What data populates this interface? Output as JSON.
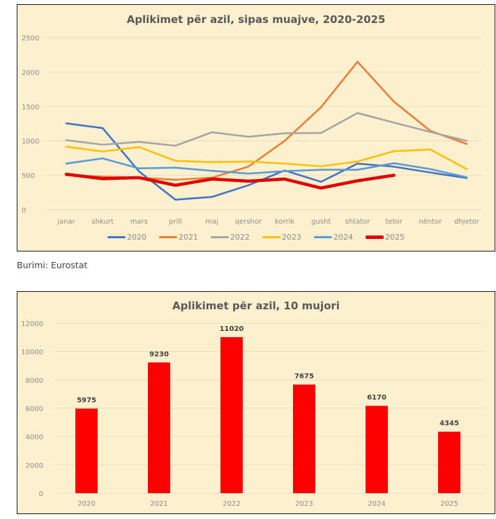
{
  "source": "Burimi: Eurostat",
  "chart_data": [
    {
      "type": "line",
      "title": "Aplikimet për azil, sipas muajve, 2020-2025",
      "xlabel": "",
      "ylabel": "",
      "ylim": [
        0,
        2500
      ],
      "yticks": [
        "0",
        "500",
        "1000",
        "1500",
        "2000",
        "2500"
      ],
      "ytick_values": [
        0,
        500,
        1000,
        1500,
        2000,
        2500
      ],
      "grid": true,
      "legend": "bottom",
      "categories": [
        "janar",
        "shkurt",
        "mars",
        "prill",
        "maj",
        "qershor",
        "korrik",
        "gusht",
        "shtator",
        "tetor",
        "nëntor",
        "dhjetor"
      ],
      "series": [
        {
          "name": "2020",
          "color": "#4472c4",
          "values": [
            1255,
            1185,
            555,
            145,
            185,
            355,
            570,
            405,
            670,
            625,
            540,
            460
          ]
        },
        {
          "name": "2021",
          "color": "#ed7d31",
          "values": [
            500,
            480,
            465,
            435,
            465,
            625,
            1000,
            1490,
            2150,
            1570,
            1145,
            955
          ]
        },
        {
          "name": "2022",
          "color": "#a5a5a5",
          "values": [
            1010,
            945,
            985,
            930,
            1125,
            1060,
            1110,
            1115,
            1405,
            1265,
            1130,
            1000
          ]
        },
        {
          "name": "2023",
          "color": "#ffc000",
          "values": [
            915,
            845,
            910,
            710,
            690,
            700,
            670,
            630,
            700,
            850,
            875,
            590
          ]
        },
        {
          "name": "2024",
          "color": "#5b9bd5",
          "values": [
            670,
            745,
            600,
            610,
            565,
            525,
            560,
            580,
            580,
            675,
            590,
            470
          ]
        },
        {
          "name": "2025",
          "color": "#e00000",
          "values": [
            515,
            450,
            465,
            355,
            445,
            415,
            445,
            315,
            420,
            500,
            null,
            null
          ]
        }
      ]
    },
    {
      "type": "bar",
      "title": "Aplikimet për azil, 10 mujori",
      "xlabel": "",
      "ylabel": "",
      "ylim": [
        0,
        12000
      ],
      "yticks": [
        "0",
        "2000",
        "4000",
        "6000",
        "8000",
        "10000",
        "12000"
      ],
      "ytick_values": [
        0,
        2000,
        4000,
        6000,
        8000,
        10000,
        12000
      ],
      "grid": true,
      "color": "#ff0000",
      "categories": [
        "2020",
        "2021",
        "2022",
        "2023",
        "2024",
        "2025"
      ],
      "values": [
        5975,
        9230,
        11020,
        7675,
        6170,
        4345
      ],
      "data_labels": [
        "5975",
        "9230",
        "11020",
        "7675",
        "6170",
        "4345"
      ]
    }
  ]
}
